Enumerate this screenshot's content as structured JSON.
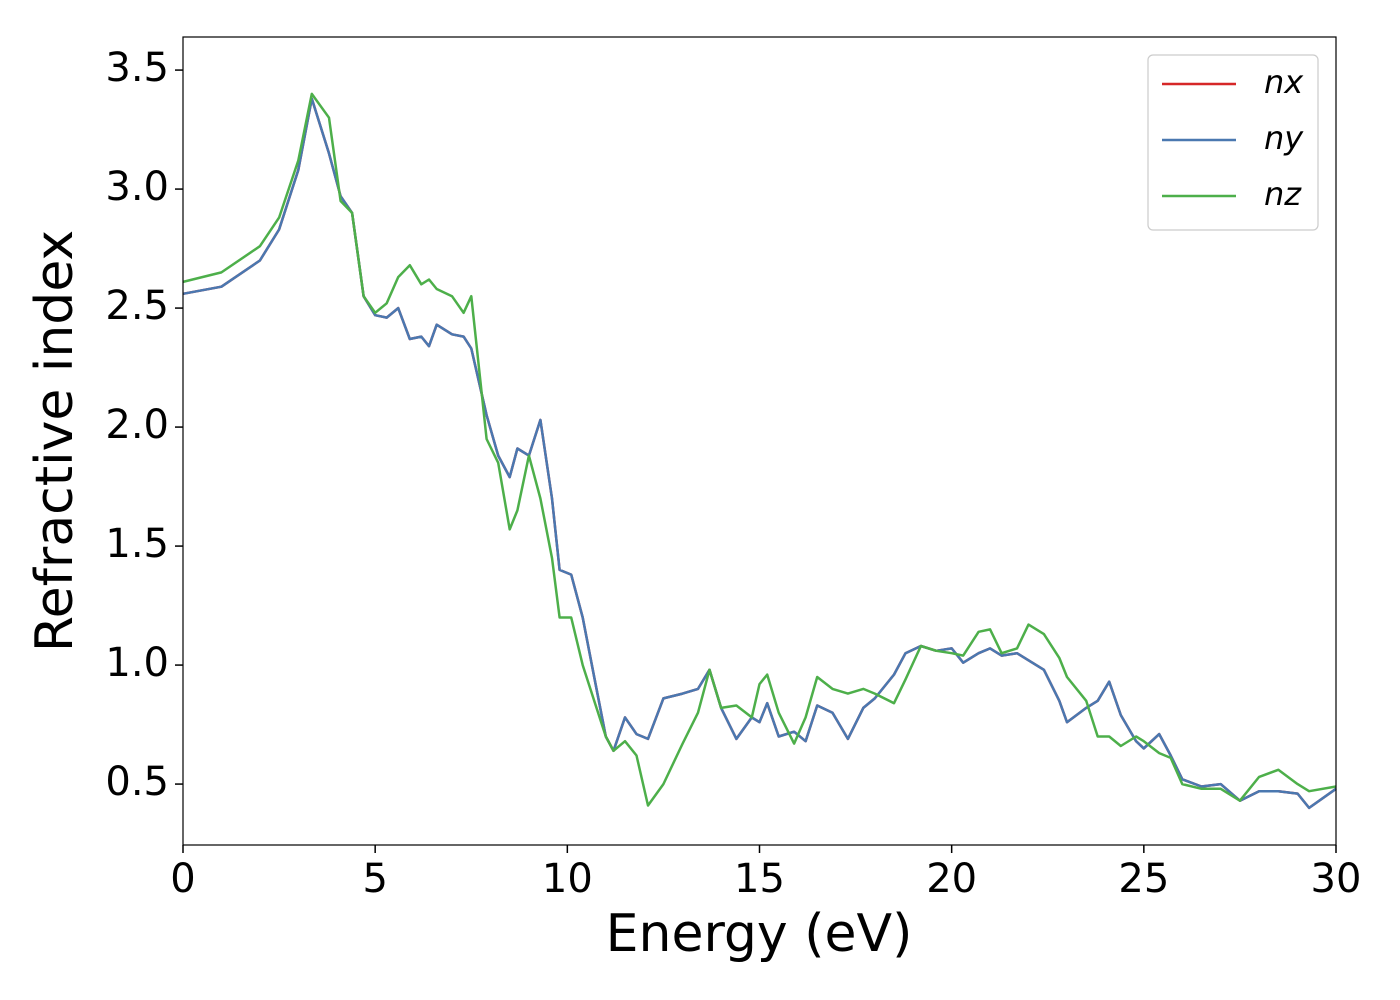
{
  "chart_data": {
    "type": "line",
    "xlabel": "Energy (eV)",
    "ylabel": "Refractive index",
    "x": [
      0,
      1,
      2,
      2.5,
      3,
      3.35,
      3.8,
      4.1,
      4.4,
      4.7,
      5,
      5.3,
      5.6,
      5.9,
      6.2,
      6.4,
      6.6,
      7,
      7.3,
      7.5,
      7.9,
      8.2,
      8.5,
      8.7,
      9,
      9.3,
      9.6,
      9.8,
      10.1,
      10.4,
      10.7,
      11,
      11.2,
      11.5,
      11.8,
      12.1,
      12.5,
      13,
      13.4,
      13.7,
      14,
      14.4,
      14.8,
      15,
      15.2,
      15.5,
      15.9,
      16.2,
      16.5,
      16.9,
      17.3,
      17.7,
      18,
      18.5,
      18.8,
      19.2,
      19.6,
      20,
      20.3,
      20.7,
      21,
      21.3,
      21.7,
      22,
      22.4,
      22.8,
      23,
      23.5,
      23.8,
      24.1,
      24.4,
      24.8,
      25,
      25.4,
      25.7,
      26,
      26.5,
      27,
      27.5,
      28,
      28.5,
      29,
      29.3,
      30
    ],
    "series": [
      {
        "name": "nx",
        "color": "#d62728",
        "values": [
          2.56,
          2.59,
          2.7,
          2.83,
          3.08,
          3.38,
          3.15,
          2.97,
          2.9,
          2.55,
          2.47,
          2.46,
          2.5,
          2.37,
          2.38,
          2.34,
          2.43,
          2.39,
          2.38,
          2.33,
          2.05,
          1.88,
          1.79,
          1.91,
          1.88,
          2.03,
          1.7,
          1.4,
          1.38,
          1.2,
          0.95,
          0.7,
          0.64,
          0.78,
          0.71,
          0.69,
          0.86,
          0.88,
          0.9,
          0.98,
          0.82,
          0.69,
          0.78,
          0.76,
          0.84,
          0.7,
          0.72,
          0.68,
          0.83,
          0.8,
          0.69,
          0.82,
          0.86,
          0.96,
          1.05,
          1.08,
          1.06,
          1.07,
          1.01,
          1.05,
          1.07,
          1.04,
          1.05,
          1.02,
          0.98,
          0.85,
          0.76,
          0.82,
          0.85,
          0.93,
          0.79,
          0.68,
          0.65,
          0.71,
          0.62,
          0.52,
          0.49,
          0.5,
          0.43,
          0.47,
          0.47,
          0.46,
          0.4,
          0.48
        ]
      },
      {
        "name": "ny",
        "color": "#4a78b0",
        "values": [
          2.56,
          2.59,
          2.7,
          2.83,
          3.08,
          3.38,
          3.15,
          2.97,
          2.9,
          2.55,
          2.47,
          2.46,
          2.5,
          2.37,
          2.38,
          2.34,
          2.43,
          2.39,
          2.38,
          2.33,
          2.05,
          1.88,
          1.79,
          1.91,
          1.88,
          2.03,
          1.7,
          1.4,
          1.38,
          1.2,
          0.95,
          0.7,
          0.64,
          0.78,
          0.71,
          0.69,
          0.86,
          0.88,
          0.9,
          0.98,
          0.82,
          0.69,
          0.78,
          0.76,
          0.84,
          0.7,
          0.72,
          0.68,
          0.83,
          0.8,
          0.69,
          0.82,
          0.86,
          0.96,
          1.05,
          1.08,
          1.06,
          1.07,
          1.01,
          1.05,
          1.07,
          1.04,
          1.05,
          1.02,
          0.98,
          0.85,
          0.76,
          0.82,
          0.85,
          0.93,
          0.79,
          0.68,
          0.65,
          0.71,
          0.62,
          0.52,
          0.49,
          0.5,
          0.43,
          0.47,
          0.47,
          0.46,
          0.4,
          0.48
        ]
      },
      {
        "name": "nz",
        "color": "#4daf4a",
        "values": [
          2.61,
          2.65,
          2.76,
          2.88,
          3.12,
          3.4,
          3.3,
          2.95,
          2.9,
          2.55,
          2.48,
          2.52,
          2.63,
          2.68,
          2.6,
          2.62,
          2.58,
          2.55,
          2.48,
          2.55,
          1.95,
          1.85,
          1.57,
          1.65,
          1.88,
          1.7,
          1.45,
          1.2,
          1.2,
          1.0,
          0.85,
          0.7,
          0.64,
          0.68,
          0.62,
          0.41,
          0.5,
          0.67,
          0.8,
          0.98,
          0.82,
          0.83,
          0.78,
          0.92,
          0.96,
          0.8,
          0.67,
          0.78,
          0.95,
          0.9,
          0.88,
          0.9,
          0.88,
          0.84,
          0.94,
          1.08,
          1.06,
          1.05,
          1.04,
          1.14,
          1.15,
          1.05,
          1.07,
          1.17,
          1.13,
          1.03,
          0.95,
          0.85,
          0.7,
          0.7,
          0.66,
          0.7,
          0.68,
          0.63,
          0.61,
          0.5,
          0.48,
          0.48,
          0.43,
          0.53,
          0.56,
          0.5,
          0.47,
          0.49
        ]
      }
    ],
    "xlim": [
      0,
      30
    ],
    "xticks": [
      0,
      5,
      10,
      15,
      20,
      25,
      30
    ],
    "ylim": [
      0.244,
      3.639
    ],
    "yticks": [
      0.5,
      1.0,
      1.5,
      2.0,
      2.5,
      3.0,
      3.5
    ],
    "legend": "upper right",
    "grid": false
  }
}
